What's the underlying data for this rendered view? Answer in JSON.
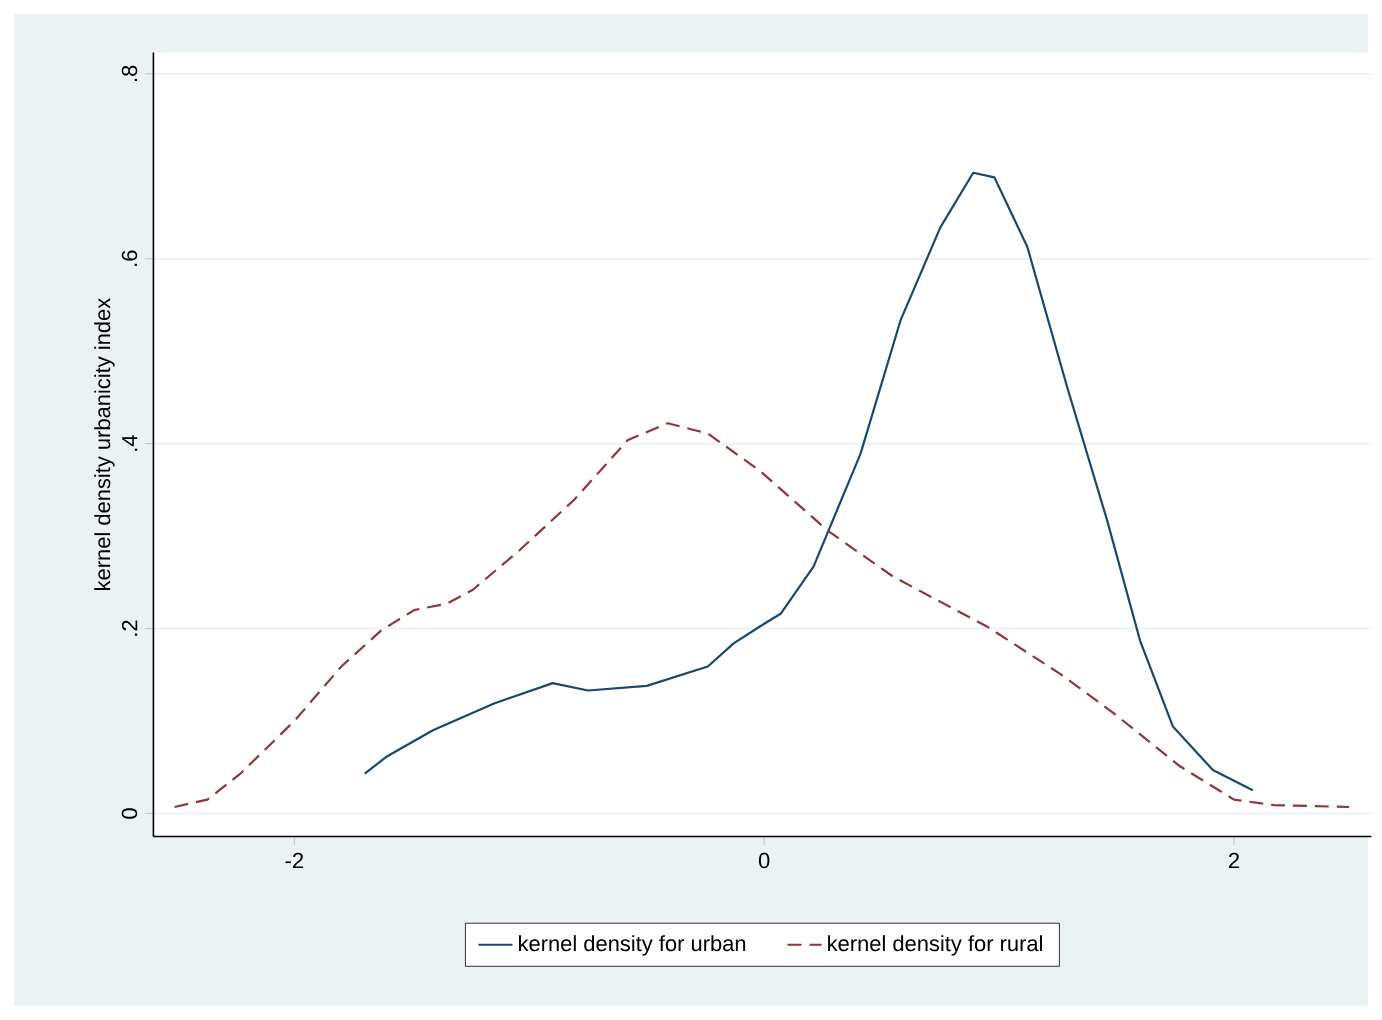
{
  "chart_data": {
    "type": "line",
    "ylabel": "kernel density urbanicity index",
    "xlim": [
      -2.6,
      2.585
    ],
    "ylim": [
      -0.025,
      0.823
    ],
    "xticks": [
      -2,
      0,
      2
    ],
    "yticks": [
      0,
      {
        "value": 0.2,
        "label": ".2"
      },
      {
        "value": 0.4,
        "label": ".4"
      },
      {
        "value": 0.6,
        "label": ".6"
      },
      {
        "value": 0.8,
        "label": ".8"
      }
    ],
    "grid": "y",
    "legend": "bottom",
    "marker": "none",
    "series": [
      {
        "name": "kernel density for urban",
        "color": "#1a476f",
        "line_style": "solid",
        "x": [
          -1.7,
          -1.61,
          -1.41,
          -1.15,
          -0.9,
          -0.75,
          -0.5,
          -0.24,
          -0.13,
          -0.02,
          0.07,
          0.21,
          0.41,
          0.58,
          0.75,
          0.89,
          0.98,
          1.12,
          1.29,
          1.46,
          1.6,
          1.74,
          1.91,
          2.08
        ],
        "values": [
          0.043,
          0.061,
          0.09,
          0.119,
          0.141,
          0.133,
          0.138,
          0.159,
          0.184,
          0.202,
          0.216,
          0.267,
          0.389,
          0.533,
          0.634,
          0.693,
          0.688,
          0.613,
          0.461,
          0.317,
          0.187,
          0.094,
          0.047,
          0.025
        ]
      },
      {
        "name": "kernel density for rural",
        "color": "#90353b",
        "line_style": "dashed",
        "x": [
          -2.51,
          -2.37,
          -2.23,
          -2.0,
          -1.8,
          -1.63,
          -1.49,
          -1.35,
          -1.24,
          -1.04,
          -0.81,
          -0.58,
          -0.41,
          -0.24,
          -0.02,
          0.27,
          0.55,
          0.95,
          1.26,
          1.49,
          1.77,
          2.0,
          2.17,
          2.49
        ],
        "values": [
          0.007,
          0.015,
          0.043,
          0.1,
          0.159,
          0.198,
          0.22,
          0.227,
          0.242,
          0.285,
          0.339,
          0.404,
          0.422,
          0.411,
          0.371,
          0.306,
          0.256,
          0.202,
          0.151,
          0.108,
          0.051,
          0.015,
          0.009,
          0.007
        ]
      }
    ]
  }
}
